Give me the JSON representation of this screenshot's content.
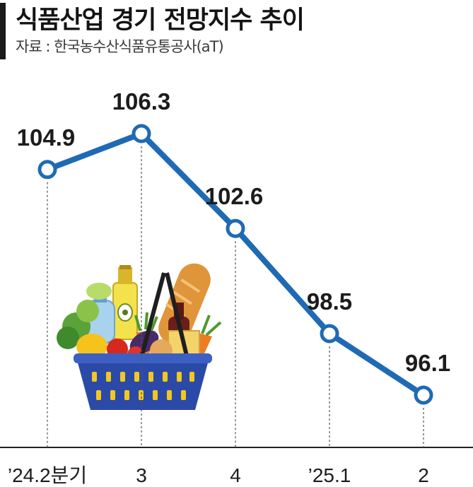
{
  "header": {
    "title": "식품산업 경기 전망지수 추이",
    "source": "자료 : 한국농수산식품유통공사(aT)"
  },
  "colors": {
    "line": "#1f6ab4",
    "point_fill": "#ffffff",
    "text": "#1c1c1c"
  },
  "illustration": "grocery-basket",
  "chart_data": {
    "type": "line",
    "categories": [
      "’24.2분기",
      "3",
      "4",
      "’25.1",
      "2"
    ],
    "series": [
      {
        "values": [
          104.9,
          106.3,
          102.6,
          98.5,
          96.1
        ]
      }
    ],
    "value_labels": [
      "104.9",
      "106.3",
      "102.6",
      "98.5",
      "96.1"
    ],
    "title": "식품산업 경기 전망지수 추이",
    "xlabel": "",
    "ylabel": "",
    "grid": false,
    "legend": "none",
    "markers": "hollow-circle"
  }
}
